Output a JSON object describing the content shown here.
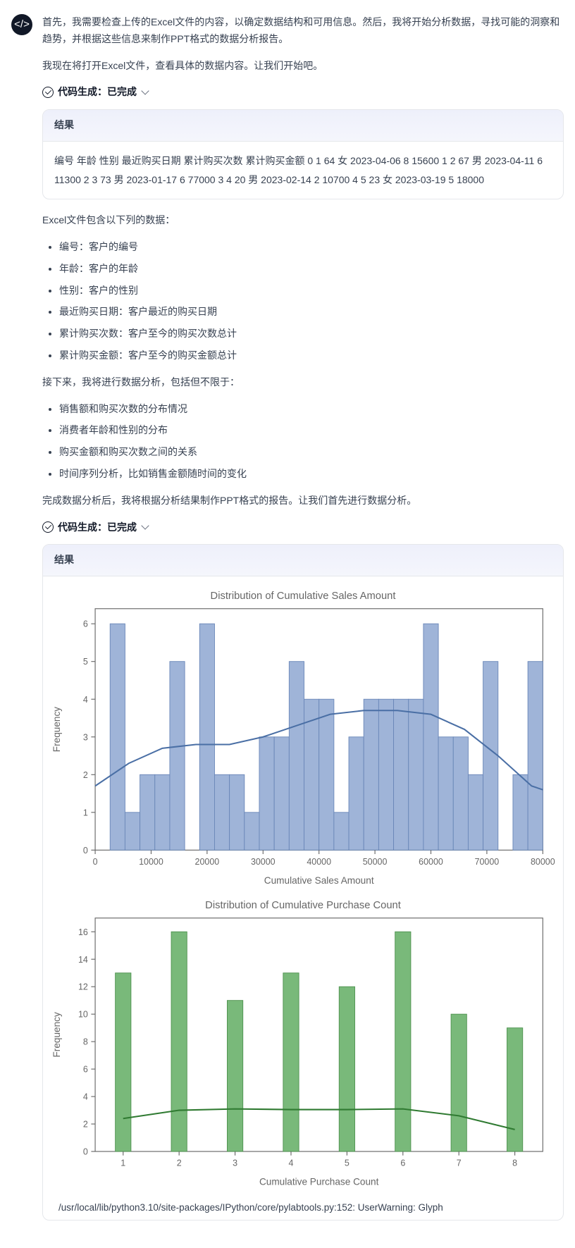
{
  "avatar": {
    "icon": "</>"
  },
  "intro": {
    "p1": "首先，我需要检查上传的Excel文件的内容，以确定数据结构和可用信息。然后，我将开始分析数据，寻找可能的洞察和趋势，并根据这些信息来制作PPT格式的数据分析报告。",
    "p2": "我现在将打开Excel文件，查看具体的数据内容。让我们开始吧。"
  },
  "code_status": {
    "label_prefix": "代码生成：",
    "label_value": "已完成"
  },
  "result_label": "结果",
  "result1": "编号 年龄 性别 最近购买日期 累计购买次数 累计购买金额 0 1 64 女 2023-04-06 8 15600 1 2 67 男 2023-04-11 6 11300 2 3 73 男 2023-01-17 6 77000 3 4 20 男 2023-02-14 2 10700 4 5 23 女 2023-03-19 5 18000",
  "fields_intro": "Excel文件包含以下列的数据：",
  "fields": [
    "编号：客户的编号",
    "年龄：客户的年龄",
    "性别：客户的性别",
    "最近购买日期：客户最近的购买日期",
    "累计购买次数：客户至今的购买次数总计",
    "累计购买金额：客户至今的购买金额总计"
  ],
  "analysis_intro": "接下来，我将进行数据分析，包括但不限于：",
  "analysis_items": [
    "销售额和购买次数的分布情况",
    "消费者年龄和性别的分布",
    "购买金额和购买次数之间的关系",
    "时间序列分析，比如销售金额随时间的变化"
  ],
  "analysis_closing": "完成数据分析后，我将根据分析结果制作PPT格式的报告。让我们首先进行数据分析。",
  "chart1": {
    "type": "histogram_with_kde",
    "title": "Distribution of Cumulative Sales Amount",
    "xlabel": "Cumulative Sales Amount",
    "ylabel": "Frequency",
    "xlim": [
      0,
      80000
    ],
    "ylim": [
      0,
      6.4
    ],
    "xtick_step": 10000,
    "yticks": [
      0,
      1,
      2,
      3,
      4,
      5,
      6
    ],
    "bin_edges": [
      0,
      2667,
      5333,
      8000,
      10667,
      13333,
      16000,
      18667,
      21333,
      24000,
      26667,
      29333,
      32000,
      34667,
      37333,
      40000,
      42667,
      45333,
      48000,
      50667,
      53333,
      56000,
      58667,
      61333,
      64000,
      66667,
      69333,
      72000,
      74667,
      77333,
      80000
    ],
    "bar_values": [
      0,
      6,
      1,
      2,
      2,
      5,
      0,
      6,
      2,
      2,
      1,
      3,
      3,
      5,
      4,
      4,
      1,
      3,
      4,
      4,
      4,
      4,
      6,
      3,
      3,
      2,
      5,
      0,
      2,
      5
    ],
    "bar_fill": "#9fb4d8",
    "bar_stroke": "#6a87b8",
    "background": "#ffffff",
    "frame_color": "#666666",
    "kde_color": "#4a6fa5",
    "kde_width": 1.8,
    "kde_points": [
      [
        0,
        1.7
      ],
      [
        6000,
        2.3
      ],
      [
        12000,
        2.7
      ],
      [
        18000,
        2.8
      ],
      [
        24000,
        2.8
      ],
      [
        30000,
        3.0
      ],
      [
        36000,
        3.3
      ],
      [
        42000,
        3.6
      ],
      [
        48000,
        3.7
      ],
      [
        54000,
        3.7
      ],
      [
        60000,
        3.6
      ],
      [
        66000,
        3.2
      ],
      [
        72000,
        2.5
      ],
      [
        78000,
        1.7
      ],
      [
        80000,
        1.6
      ]
    ]
  },
  "chart2": {
    "type": "bar_with_kde",
    "title": "Distribution of Cumulative Purchase Count",
    "xlabel": "Cumulative Purchase Count",
    "ylabel": "Frequency",
    "xticks": [
      1,
      2,
      3,
      4,
      5,
      6,
      7,
      8
    ],
    "yticks": [
      0,
      2,
      4,
      6,
      8,
      10,
      12,
      14,
      16
    ],
    "ylim": [
      0,
      17
    ],
    "bar_values": [
      13,
      16,
      11,
      13,
      12,
      16,
      10,
      9
    ],
    "bar_fill": "#79b97a",
    "bar_stroke": "#4e924f",
    "bar_width_ratio": 0.28,
    "background": "#ffffff",
    "frame_color": "#666666",
    "kde_color": "#2f7a31",
    "kde_width": 1.8,
    "kde_points": [
      [
        1,
        2.4
      ],
      [
        2,
        3.0
      ],
      [
        3,
        3.1
      ],
      [
        4,
        3.05
      ],
      [
        5,
        3.05
      ],
      [
        6,
        3.1
      ],
      [
        7,
        2.6
      ],
      [
        8,
        1.6
      ]
    ]
  },
  "warning": "/usr/local/lib/python3.10/site-packages/IPython/core/pylabtools.py:152: UserWarning: Glyph"
}
